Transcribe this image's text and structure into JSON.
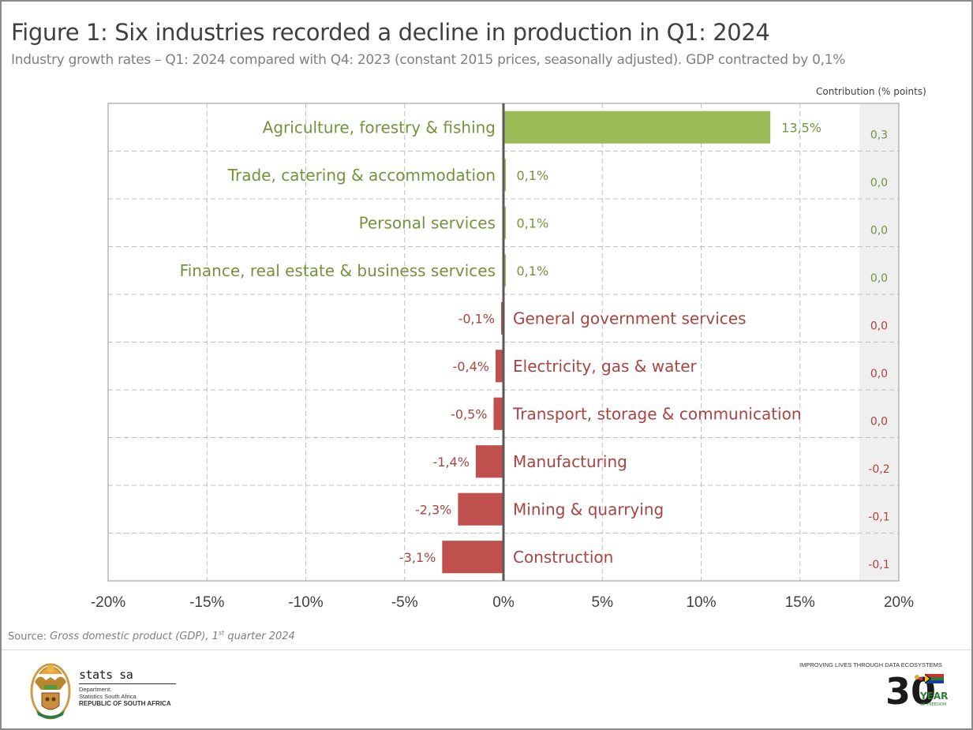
{
  "figure": {
    "title": "Figure 1: Six industries recorded a decline in production in Q1: 2024",
    "subtitle": "Industry growth rates – Q1: 2024 compared with Q4: 2023 (constant 2015 prices, seasonally adjusted). GDP contracted by 0,1%",
    "contribution_header": "Contribution (% points)",
    "source_prefix": "Source: ",
    "source_title": "Gross domestic product (GDP), 1",
    "source_sup": "st",
    "source_suffix": " quarter 2024"
  },
  "colors": {
    "positive": "#9bbb59",
    "negative": "#c0504d",
    "positive_text": "#76923c",
    "negative_text": "#a94442",
    "axis": "#595959",
    "grid": "#bfbfbf",
    "contrib_bg": "#efefef"
  },
  "chart_data": {
    "type": "bar",
    "orientation": "horizontal",
    "title": "Figure 1: Six industries recorded a decline in production in Q1: 2024",
    "subtitle": "Industry growth rates – Q1: 2024 compared with Q4: 2023 (constant 2015 prices, seasonally adjusted). GDP contracted by 0,1%",
    "xlabel": "",
    "ylabel": "",
    "xlim": [
      -20,
      20
    ],
    "x_ticks": [
      -20,
      -15,
      -10,
      -5,
      0,
      5,
      10,
      15,
      20
    ],
    "x_tick_labels": [
      "-20%",
      "-15%",
      "-10%",
      "-5%",
      "0%",
      "5%",
      "10%",
      "15%",
      "20%"
    ],
    "grid": true,
    "legend": "none",
    "categories": [
      "Agriculture, forestry & fishing",
      "Trade, catering & accommodation",
      "Personal services",
      "Finance, real estate & business services",
      "General government services",
      "Electricity, gas & water",
      "Transport, storage & communication",
      "Manufacturing",
      "Mining & quarrying",
      "Construction"
    ],
    "values": [
      13.5,
      0.1,
      0.1,
      0.1,
      -0.1,
      -0.4,
      -0.5,
      -1.4,
      -2.3,
      -3.1
    ],
    "value_labels": [
      "13,5%",
      "0,1%",
      "0,1%",
      "0,1%",
      "-0,1%",
      "-0,4%",
      "-0,5%",
      "-1,4%",
      "-2,3%",
      "-3,1%"
    ],
    "contribution_header": "Contribution (% points)",
    "contributions": [
      0.3,
      0.0,
      0.0,
      0.0,
      0.0,
      0.0,
      0.0,
      -0.2,
      -0.1,
      -0.1
    ],
    "contribution_labels": [
      "0,3",
      "0,0",
      "0,0",
      "0,0",
      "0,0",
      "0,0",
      "0,0",
      "-0,2",
      "-0,1",
      "-0,1"
    ]
  },
  "footer": {
    "org_name": "stats sa",
    "dept_line1": "Department:",
    "dept_line2": "Statistics South Africa",
    "dept_line3": "REPUBLIC OF SOUTH AFRICA",
    "tagline": "IMPROVING LIVES THROUGH DATA ECOSYSTEMS",
    "anniversary_number": "30",
    "anniversary_word": "YEARS",
    "anniversary_sub": "OF FREEDOM"
  }
}
